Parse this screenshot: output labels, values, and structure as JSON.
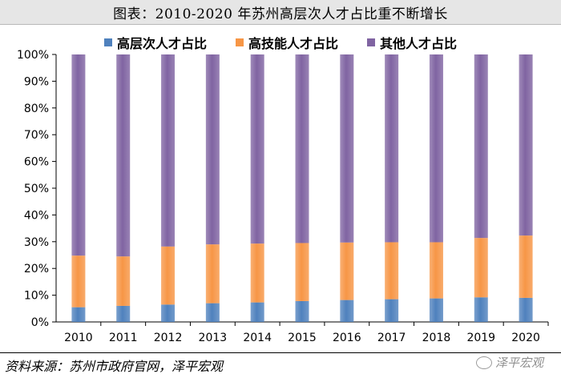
{
  "title": "图表：2010-2020 年苏州高层次人才占比重不断增长",
  "source": "资料来源：苏州市政府官网，泽平宏观",
  "watermark": "泽平宏观",
  "colors": {
    "high_level": "#4f81bd",
    "high_skill": "#f79646",
    "other": "#8064a2"
  },
  "chart_data": {
    "type": "bar",
    "stacked": true,
    "categories": [
      "2010",
      "2011",
      "2012",
      "2013",
      "2014",
      "2015",
      "2016",
      "2017",
      "2018",
      "2019",
      "2020"
    ],
    "series": [
      {
        "name": "高层次人才占比",
        "key": "high_level",
        "values": [
          5.5,
          6.0,
          6.5,
          7.0,
          7.3,
          7.8,
          8.2,
          8.5,
          8.8,
          9.2,
          9.0
        ]
      },
      {
        "name": "高技能人才占比",
        "key": "high_skill",
        "values": [
          19.3,
          18.5,
          21.7,
          22.0,
          22.0,
          21.7,
          21.5,
          21.3,
          21.0,
          22.2,
          23.3
        ]
      },
      {
        "name": "其他人才占比",
        "key": "other",
        "values": [
          75.2,
          75.5,
          71.8,
          71.0,
          70.7,
          70.5,
          70.3,
          70.2,
          70.2,
          68.6,
          67.7
        ]
      }
    ],
    "yticks": [
      "0%",
      "10%",
      "20%",
      "30%",
      "40%",
      "50%",
      "60%",
      "70%",
      "80%",
      "90%",
      "100%"
    ],
    "ylim": [
      0,
      100
    ],
    "grid": false,
    "legend_position": "top"
  }
}
